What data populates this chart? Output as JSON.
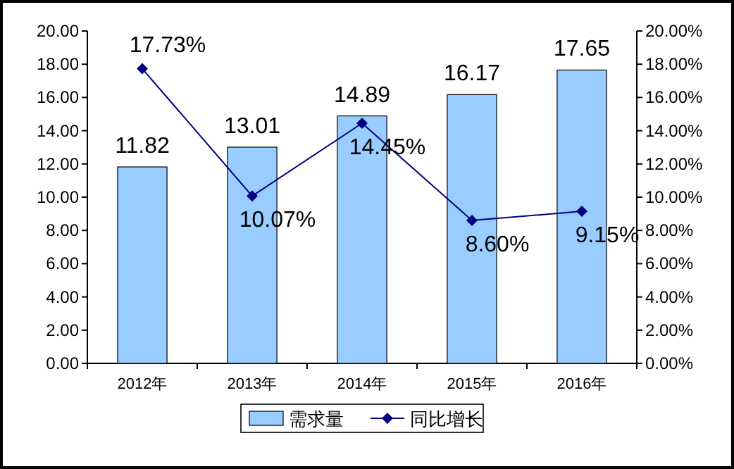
{
  "chart_data": {
    "type": "bar",
    "categories": [
      "2012年",
      "2013年",
      "2014年",
      "2015年",
      "2016年"
    ],
    "series": [
      {
        "name": "需求量",
        "color": "#99ccff",
        "values": [
          11.82,
          13.01,
          14.89,
          16.17,
          17.65
        ],
        "value_labels": [
          "11.82",
          "13.01",
          "14.89",
          "16.17",
          "17.65"
        ]
      },
      {
        "name": "同比增长",
        "type": "line",
        "axis": "y2",
        "color": "#000080",
        "marker": "diamond",
        "values": [
          17.73,
          10.07,
          14.45,
          8.6,
          9.15
        ],
        "value_labels": [
          "17.73%",
          "10.07%",
          "14.45%",
          "8.60%",
          "9.15%"
        ]
      }
    ],
    "ylim": [
      0,
      20
    ],
    "yticks": [
      {
        "value": 0,
        "label": "0.00"
      },
      {
        "value": 2,
        "label": "2.00"
      },
      {
        "value": 4,
        "label": "4.00"
      },
      {
        "value": 6,
        "label": "6.00"
      },
      {
        "value": 8,
        "label": "8.00"
      },
      {
        "value": 10,
        "label": "10.00"
      },
      {
        "value": 12,
        "label": "12.00"
      },
      {
        "value": 14,
        "label": "14.00"
      },
      {
        "value": 16,
        "label": "16.00"
      },
      {
        "value": 18,
        "label": "18.00"
      },
      {
        "value": 20,
        "label": "20.00"
      }
    ],
    "y2lim": [
      0,
      20
    ],
    "y2ticks": [
      {
        "value": 0,
        "label": "0.00%"
      },
      {
        "value": 2,
        "label": "2.00%"
      },
      {
        "value": 4,
        "label": "4.00%"
      },
      {
        "value": 6,
        "label": "6.00%"
      },
      {
        "value": 8,
        "label": "8.00%"
      },
      {
        "value": 10,
        "label": "10.00%"
      },
      {
        "value": 12,
        "label": "12.00%"
      },
      {
        "value": 14,
        "label": "14.00%"
      },
      {
        "value": 16,
        "label": "16.00%"
      },
      {
        "value": 18,
        "label": "18.00%"
      },
      {
        "value": 20,
        "label": "20.00%"
      }
    ],
    "legend": "bottom"
  }
}
